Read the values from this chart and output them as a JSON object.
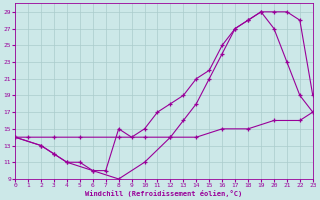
{
  "xlabel": "Windchill (Refroidissement éolien,°C)",
  "bg_color": "#cce8e8",
  "grid_color": "#aacccc",
  "line_color": "#990099",
  "xlim": [
    0,
    23
  ],
  "ylim": [
    9,
    30
  ],
  "xticks": [
    0,
    1,
    2,
    3,
    4,
    5,
    6,
    7,
    8,
    9,
    10,
    11,
    12,
    13,
    14,
    15,
    16,
    17,
    18,
    19,
    20,
    21,
    22,
    23
  ],
  "yticks": [
    9,
    11,
    13,
    15,
    17,
    19,
    21,
    23,
    25,
    27,
    29
  ],
  "series": [
    {
      "x": [
        0,
        1,
        3,
        5,
        8,
        10,
        12,
        14,
        16,
        18,
        20,
        22,
        23
      ],
      "y": [
        14,
        14,
        14,
        14,
        14,
        14,
        14,
        14,
        15,
        15,
        16,
        16,
        17
      ]
    },
    {
      "x": [
        0,
        2,
        3,
        4,
        5,
        6,
        7,
        8,
        9,
        10,
        11,
        12,
        13,
        14,
        15,
        16,
        17,
        18,
        19,
        20,
        21,
        22,
        23
      ],
      "y": [
        14,
        13,
        12,
        11,
        11,
        10,
        10,
        15,
        14,
        15,
        17,
        18,
        19,
        21,
        22,
        25,
        27,
        28,
        29,
        27,
        23,
        19,
        17
      ]
    },
    {
      "x": [
        0,
        2,
        3,
        4,
        6,
        8,
        10,
        12,
        13,
        14,
        15,
        16,
        17,
        18,
        19,
        20,
        21,
        22,
        23
      ],
      "y": [
        14,
        13,
        12,
        11,
        10,
        9,
        11,
        14,
        16,
        18,
        21,
        24,
        27,
        28,
        29,
        29,
        29,
        28,
        19
      ]
    }
  ]
}
